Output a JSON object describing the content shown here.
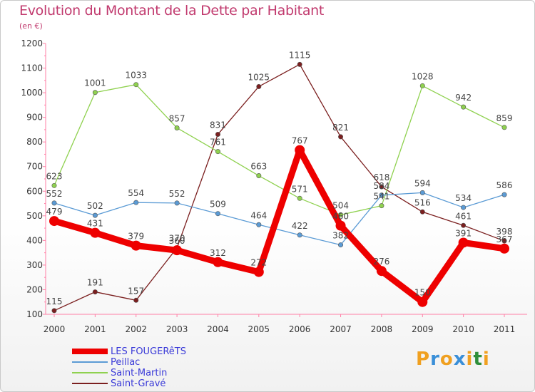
{
  "title": "Evolution du Montant de la Dette par Habitant",
  "subtitle": "(en €)",
  "logo": {
    "text": "Proxiti",
    "colors": [
      "#f0a020",
      "#3a8fd8",
      "#f0a020",
      "#3a8fd8",
      "#f0a020",
      "#2f8f3a",
      "#f0a020"
    ]
  },
  "chart_data": {
    "type": "line",
    "title": "Evolution du Montant de la Dette par Habitant",
    "subtitle": "(en €)",
    "xlabel": "",
    "ylabel": "",
    "categories": [
      "2000",
      "2001",
      "2002",
      "2003",
      "2004",
      "2005",
      "2006",
      "2007",
      "2008",
      "2009",
      "2010",
      "2011"
    ],
    "ylim": [
      100,
      1200
    ],
    "yticks": [
      100,
      200,
      300,
      400,
      500,
      600,
      700,
      800,
      900,
      1000,
      1100,
      1200
    ],
    "grid": false,
    "legend_position": "bottom-left",
    "series": [
      {
        "name": "LES FOUGERêTS",
        "color": "#ee0000",
        "values": [
          479,
          431,
          379,
          360,
          312,
          272,
          767,
          460,
          276,
          150,
          391,
          367
        ],
        "labels": [
          "479",
          "431",
          "379",
          "360",
          "312",
          "272",
          "767",
          "460",
          "276",
          "150",
          "391",
          "367"
        ]
      },
      {
        "name": "Peillac",
        "color": "#5b9bd5",
        "values": [
          552,
          502,
          554,
          552,
          509,
          464,
          422,
          382,
          584,
          594,
          534,
          586
        ],
        "labels": [
          "552",
          "502",
          "554",
          "552",
          "509",
          "464",
          "422",
          "382",
          "584",
          "594",
          "534",
          "586"
        ]
      },
      {
        "name": "Saint-Martin",
        "color": "#8fd14f",
        "values": [
          623,
          1001,
          1033,
          857,
          761,
          663,
          571,
          504,
          541,
          1028,
          942,
          859
        ],
        "labels": [
          "623",
          "1001",
          "1033",
          "857",
          "761",
          "663",
          "571",
          "504",
          "541",
          "1028",
          "942",
          "859"
        ]
      },
      {
        "name": "Saint-Gravé",
        "color": "#7b1f1f",
        "values": [
          115,
          191,
          157,
          370,
          831,
          1025,
          1115,
          821,
          618,
          516,
          461,
          398
        ],
        "labels": [
          "115",
          "191",
          "157",
          "370",
          "831",
          "1025",
          "1115",
          "821",
          "618",
          "516",
          "461",
          "398"
        ]
      }
    ]
  }
}
